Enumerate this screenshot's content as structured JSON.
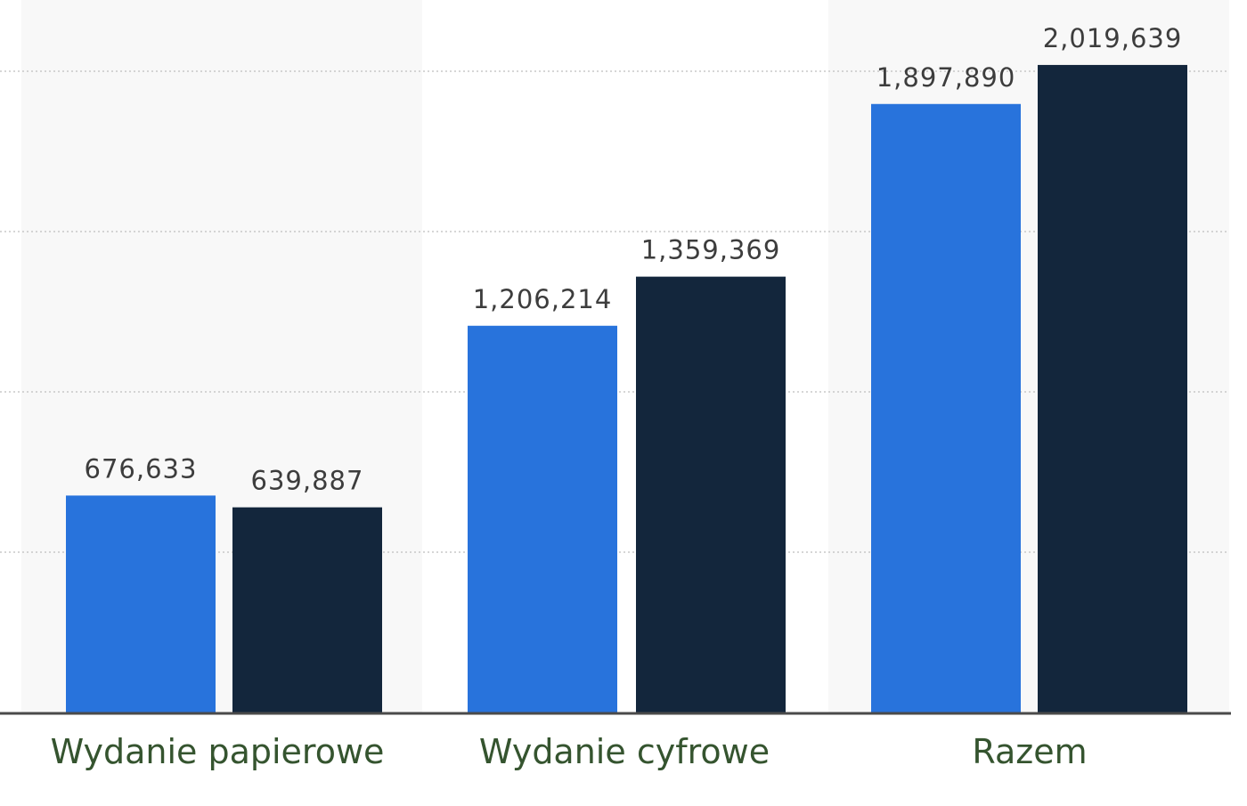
{
  "chart_data": {
    "type": "bar",
    "categories": [
      "Wydanie papierowe",
      "Wydanie cyfrowe",
      "Razem"
    ],
    "series": [
      {
        "values": [
          676633,
          1206214,
          1897890
        ],
        "labels": [
          "676,633",
          "1,206,214",
          "1,897,890"
        ],
        "color": "#2873dc"
      },
      {
        "values": [
          639887,
          1359369,
          2019639
        ],
        "labels": [
          "639,887",
          "1,359,369",
          "2,019,639"
        ],
        "color": "#13263c"
      }
    ],
    "ylim": [
      0,
      2000000
    ],
    "grid": true,
    "legend": "none"
  },
  "colors": {
    "panel_shade": "#f8f8f8",
    "gridline": "#c8c8c8",
    "baseline": "#4a4a4a",
    "value_text": "#3d3d3d",
    "category_text": "#35542f"
  }
}
